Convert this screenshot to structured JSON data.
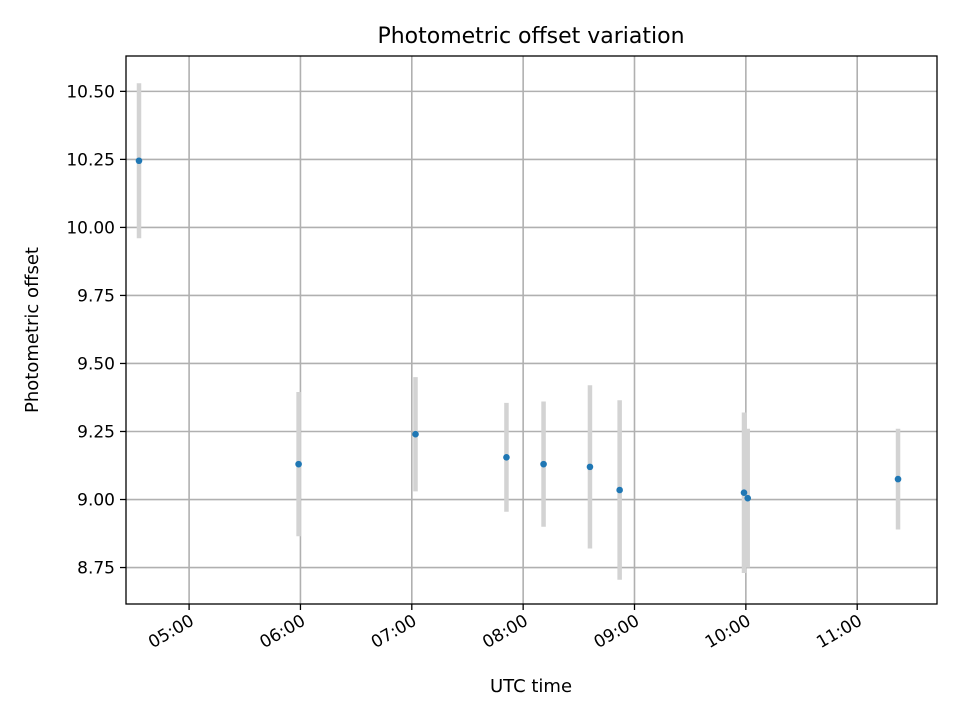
{
  "chart_data": {
    "type": "scatter",
    "title": "Photometric offset variation",
    "xlabel": "UTC time",
    "ylabel": "Photometric offset",
    "xlim": [
      "04:26",
      "11:43"
    ],
    "ylim": [
      8.616,
      10.63
    ],
    "x_ticks": [
      "05:00",
      "06:00",
      "07:00",
      "08:00",
      "09:00",
      "10:00",
      "11:00"
    ],
    "y_ticks": [
      8.75,
      9.0,
      9.25,
      9.5,
      9.75,
      10.0,
      10.25,
      10.5
    ],
    "y_tick_labels": [
      "8.75",
      "9.00",
      "9.25",
      "9.50",
      "9.75",
      "10.00",
      "10.25",
      "10.50"
    ],
    "grid": true,
    "point_color": "#1f77b4",
    "errorbar_color": "#d3d3d3",
    "points": [
      {
        "x": "04:33",
        "y": 10.245,
        "yerr": 0.285
      },
      {
        "x": "05:59",
        "y": 9.13,
        "yerr": 0.265
      },
      {
        "x": "07:02",
        "y": 9.24,
        "yerr": 0.21
      },
      {
        "x": "07:51",
        "y": 9.155,
        "yerr": 0.2
      },
      {
        "x": "08:11",
        "y": 9.13,
        "yerr": 0.23
      },
      {
        "x": "08:36",
        "y": 9.12,
        "yerr": 0.3
      },
      {
        "x": "08:52",
        "y": 9.035,
        "yerr": 0.33
      },
      {
        "x": "09:59",
        "y": 9.025,
        "yerr": 0.295
      },
      {
        "x": "10:01",
        "y": 9.005,
        "yerr": 0.255
      },
      {
        "x": "11:22",
        "y": 9.075,
        "yerr": 0.185
      }
    ]
  }
}
